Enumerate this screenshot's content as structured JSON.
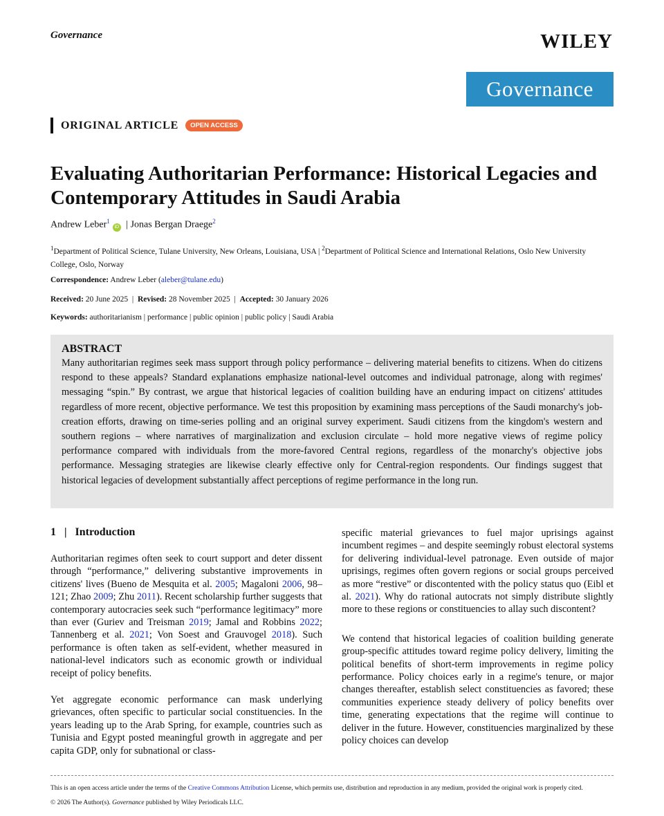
{
  "header": {
    "journal_running": "Governance",
    "publisher": "WILEY",
    "journal_logo": "Governance",
    "logo_color": "#2a8ec4"
  },
  "article": {
    "type": "ORIGINAL ARTICLE",
    "badge": "OPEN ACCESS",
    "badge_color": "#ef6a3a",
    "title": "Evaluating Authoritarian Performance: Historical Legacies and Contemporary Attitudes in Saudi Arabia",
    "authors": [
      {
        "name": "Andrew Leber",
        "sup": "1",
        "orcid": "iD"
      },
      {
        "name": "Jonas Bergan Draege",
        "sup": "2"
      }
    ],
    "affiliations": [
      {
        "sup": "1",
        "text": "Department of Political Science, Tulane University, New Orleans, Louisiana, USA"
      },
      {
        "sup": "2",
        "text": "Department of Political Science and International Relations, Oslo New University College, Oslo, Norway"
      }
    ],
    "correspondence_label": "Correspondence:",
    "correspondence_name": "Andrew Leber",
    "correspondence_email": "aleber@tulane.edu",
    "dates": [
      {
        "label": "Received:",
        "value": "20 June 2025"
      },
      {
        "label": "Revised:",
        "value": "28 November 2025"
      },
      {
        "label": "Accepted:",
        "value": "30 January 2026"
      }
    ],
    "keywords_label": "Keywords:",
    "keywords": [
      "authoritarianism",
      "performance",
      "public opinion",
      "public policy",
      "Saudi Arabia"
    ]
  },
  "abstract": {
    "heading": "ABSTRACT",
    "text": "Many authoritarian regimes seek mass support through policy performance – delivering material benefits to citizens. When do citizens respond to these appeals? Standard explanations emphasize national-level outcomes and individual patronage, along with regimes' messaging “spin.” By contrast, we argue that historical legacies of coalition building have an enduring impact on citizens' attitudes regardless of more recent, objective performance. We test this proposition by examining mass perceptions of the Saudi monarchy's job-creation efforts, drawing on time-series polling and an original survey experiment. Saudi citizens from the kingdom's western and southern regions – where narratives of marginalization and exclusion circulate – hold more negative views of regime policy performance compared with individuals from the more-favored Central regions, regardless of the monarchy's objective jobs performance. Messaging strategies are likewise clearly effective only for Central-region respondents. Our findings suggest that historical legacies of development substantially affect perceptions of regime performance in the long run."
  },
  "section": {
    "number": "1",
    "title": "Introduction"
  },
  "left_column": [
    [
      {
        "t": "Authoritarian regimes often seek to court support and deter dissent through “performance,” delivering substantive improvements in citizens' lives (Bueno de Mesquita et al. "
      },
      {
        "t": "2005",
        "l": 1
      },
      {
        "t": "; Magaloni "
      },
      {
        "t": "2006",
        "l": 1
      },
      {
        "t": ", 98–121; Zhao "
      },
      {
        "t": "2009",
        "l": 1
      },
      {
        "t": "; Zhu "
      },
      {
        "t": "2011",
        "l": 1
      },
      {
        "t": "). Recent scholarship further suggests that contemporary autocracies seek such “performance legitimacy” more than ever (Guriev and Treisman "
      },
      {
        "t": "2019",
        "l": 1
      },
      {
        "t": "; Jamal and Robbins "
      },
      {
        "t": "2022",
        "l": 1
      },
      {
        "t": "; Tannenberg et al. "
      },
      {
        "t": "2021",
        "l": 1
      },
      {
        "t": "; Von Soest and Grauvogel "
      },
      {
        "t": "2018",
        "l": 1
      },
      {
        "t": "). Such performance is often taken as self-evident, whether measured in national-level indicators such as economic growth or individual receipt of policy benefits."
      }
    ],
    [
      {
        "t": "Yet aggregate economic performance can mask underlying grievances, often specific to particular social constituencies. In the years leading up to the Arab Spring, for example, countries such as Tunisia and Egypt posted meaningful growth in aggregate and per capita GDP, only for subnational or class-"
      }
    ]
  ],
  "right_column": [
    [
      {
        "t": "specific material grievances to fuel major uprisings against incumbent regimes – and despite seemingly robust electoral systems for delivering individual-level patronage. Even outside of major uprisings, regimes often govern regions or social groups perceived as more “restive” or discontented with the policy status quo (Eibl et al. "
      },
      {
        "t": "2021",
        "l": 1
      },
      {
        "t": "). Why do rational autocrats not simply distribute slightly more to these regions or constituencies to allay such discontent?"
      }
    ],
    [
      {
        "t": "We contend that historical legacies of coalition building generate group-specific attitudes toward regime policy delivery, limiting the political benefits of short-term improvements in regime policy performance. Policy choices early in a regime's tenure, or major changes thereafter, establish select constituencies as favored; these communities experience steady delivery of policy benefits over time, generating expectations that the regime will continue to deliver in the future. However, constituencies marginalized by these policy choices can develop"
      }
    ]
  ],
  "footer": {
    "license_pre": "This is an open access article under the terms of the ",
    "license_link": "Creative Commons Attribution",
    "license_post": " License, which permits use, distribution and reproduction in any medium, provided the original work is properly cited.",
    "copyright_pre": "© 2026 The Author(s). ",
    "copyright_journal": "Governance",
    "copyright_post": " published by Wiley Periodicals LLC."
  }
}
